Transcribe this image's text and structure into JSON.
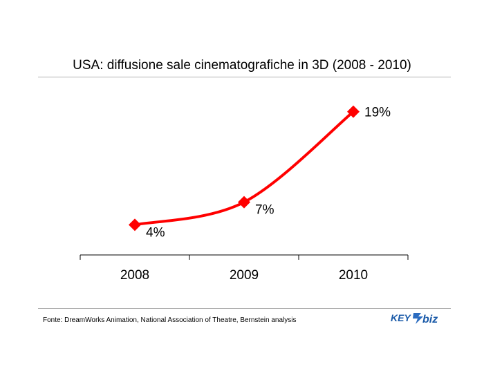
{
  "title": "USA: diffusione sale cinematografiche in 3D (2008 - 2010)",
  "source": "Fonte: DreamWorks Animation, National Association of Theatre, Bernstein analysis",
  "logo": {
    "text_a": "KEY",
    "text_b": "biz",
    "colors": {
      "a": "#1a5aa8",
      "b": "#1a5aa8",
      "arrow": "#2b6cc0"
    }
  },
  "chart_data": {
    "type": "line",
    "categories": [
      "2008",
      "2009",
      "2010"
    ],
    "series": [
      {
        "values": [
          4,
          7,
          19
        ],
        "labels": [
          "4%",
          "7%",
          "19%"
        ],
        "color": "#ff0000"
      }
    ],
    "title": "USA: diffusione sale cinematografiche in 3D (2008 - 2010)",
    "xlabel": "",
    "ylabel": "",
    "ylim": [
      0,
      23
    ],
    "grid": false,
    "legend": "none",
    "marker": "diamond"
  }
}
